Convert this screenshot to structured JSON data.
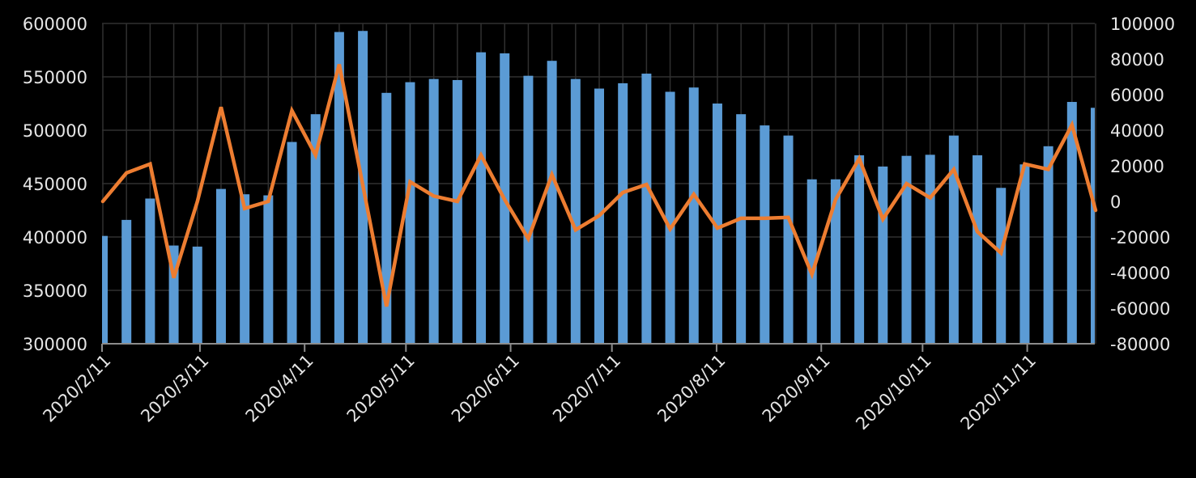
{
  "chart_data": {
    "type": "bar+line",
    "title": "",
    "xlabel": "",
    "ylabel": "",
    "y2label": "",
    "legend": null,
    "grid": true,
    "colors": {
      "background": "#000000",
      "bars": "#5b9bd5",
      "line": "#ed7d31",
      "grid": "#303030",
      "axis": "#8c8c8c",
      "text": "#e6e6e6"
    },
    "ylim": [
      300000,
      600000
    ],
    "y_ticks": [
      300000,
      350000,
      400000,
      450000,
      500000,
      550000,
      600000
    ],
    "y2lim": [
      -80000,
      100000
    ],
    "y2_ticks": [
      -80000,
      -60000,
      -40000,
      -20000,
      0,
      20000,
      40000,
      60000,
      80000,
      100000
    ],
    "x_tick_labels": [
      "2020/2/11",
      "2020/3/11",
      "2020/4/11",
      "2020/5/11",
      "2020/6/11",
      "2020/7/11",
      "2020/8/11",
      "2020/9/11",
      "2020/10/11",
      "2020/11/11"
    ],
    "x_tick_days_from_start": [
      0,
      29,
      60,
      90,
      121,
      151,
      182,
      213,
      243,
      274
    ],
    "x": [
      "2020/2/11",
      "2020/2/18",
      "2020/2/25",
      "2020/3/3",
      "2020/3/10",
      "2020/3/17",
      "2020/3/24",
      "2020/3/31",
      "2020/4/7",
      "2020/4/14",
      "2020/4/21",
      "2020/4/28",
      "2020/5/5",
      "2020/5/12",
      "2020/5/19",
      "2020/5/26",
      "2020/6/2",
      "2020/6/9",
      "2020/6/16",
      "2020/6/23",
      "2020/6/30",
      "2020/7/7",
      "2020/7/14",
      "2020/7/21",
      "2020/7/28",
      "2020/8/4",
      "2020/8/11",
      "2020/8/18",
      "2020/8/25",
      "2020/9/1",
      "2020/9/8",
      "2020/9/15",
      "2020/9/22",
      "2020/9/29",
      "2020/10/6",
      "2020/10/13",
      "2020/10/20",
      "2020/10/27",
      "2020/11/3",
      "2020/11/10",
      "2020/11/17",
      "2020/11/24",
      "2020/12/1"
    ],
    "series": [
      {
        "name": "bars (left axis)",
        "type": "bar",
        "axis": "left",
        "values": [
          401000,
          416000,
          436000,
          392000,
          391000,
          445000,
          440000,
          439000,
          489000,
          515000,
          592000,
          593000,
          535000,
          545000,
          548000,
          547000,
          573000,
          572000,
          551000,
          565000,
          548000,
          539000,
          544000,
          553000,
          536000,
          540000,
          525000,
          515000,
          504500,
          495000,
          454000,
          454000,
          476500,
          466000,
          476000,
          477000,
          495000,
          476500,
          446000,
          468000,
          485000,
          526500,
          521000
        ]
      },
      {
        "name": "line (right axis)",
        "type": "line",
        "axis": "right",
        "values": [
          0,
          16000,
          21000,
          -43000,
          0,
          53000,
          -4000,
          0,
          51000,
          26000,
          77000,
          9000,
          -59000,
          11000,
          3000,
          0,
          26000,
          1000,
          -21000,
          15000,
          -16000,
          -8000,
          5000,
          9500,
          -15500,
          4000,
          -15000,
          -9500,
          -9500,
          -9000,
          -41000,
          1000,
          24000,
          -10000,
          10000,
          2000,
          18000,
          -17000,
          -29000,
          21000,
          18000,
          43000,
          -5000
        ]
      }
    ]
  }
}
